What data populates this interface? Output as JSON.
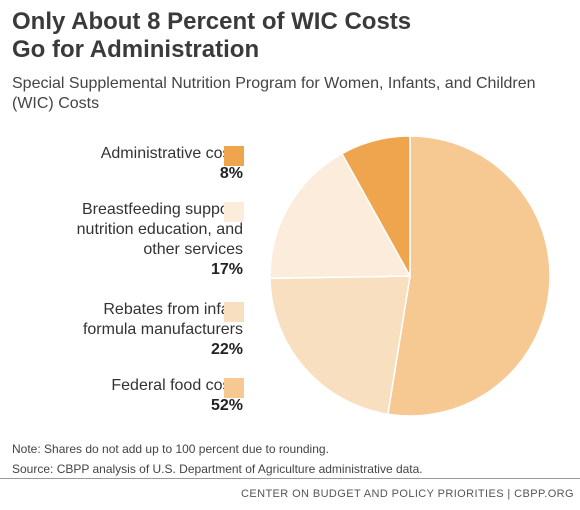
{
  "title_line1": "Only About 8 Percent of WIC Costs",
  "title_line2": "Go for Administration",
  "subtitle_line1": "Special Supplemental Nutrition Program for Women, Infants, and Children",
  "subtitle_line2": "(WIC) Costs",
  "chart_data": {
    "type": "pie",
    "slices": [
      {
        "label_lines": [
          "Federal food costs"
        ],
        "value": 52,
        "value_label": "52%",
        "color": "#f6c892"
      },
      {
        "label_lines": [
          "Rebates from infant",
          "formula manufacturers"
        ],
        "value": 22,
        "value_label": "22%",
        "color": "#f8dfc0"
      },
      {
        "label_lines": [
          "Breastfeeding support,",
          "nutrition education, and",
          "other services"
        ],
        "value": 17,
        "value_label": "17%",
        "color": "#fcecdb"
      },
      {
        "label_lines": [
          "Administrative costs"
        ],
        "value": 8,
        "value_label": "8%",
        "color": "#efa54e"
      }
    ],
    "legend_order": [
      3,
      2,
      1,
      0
    ]
  },
  "note": "Note:  Shares do not add up to 100 percent due to rounding.",
  "source": "Source: CBPP analysis of U.S. Department of Agriculture administrative data.",
  "footer": "CENTER ON BUDGET AND POLICY PRIORITIES | CBPP.ORG"
}
